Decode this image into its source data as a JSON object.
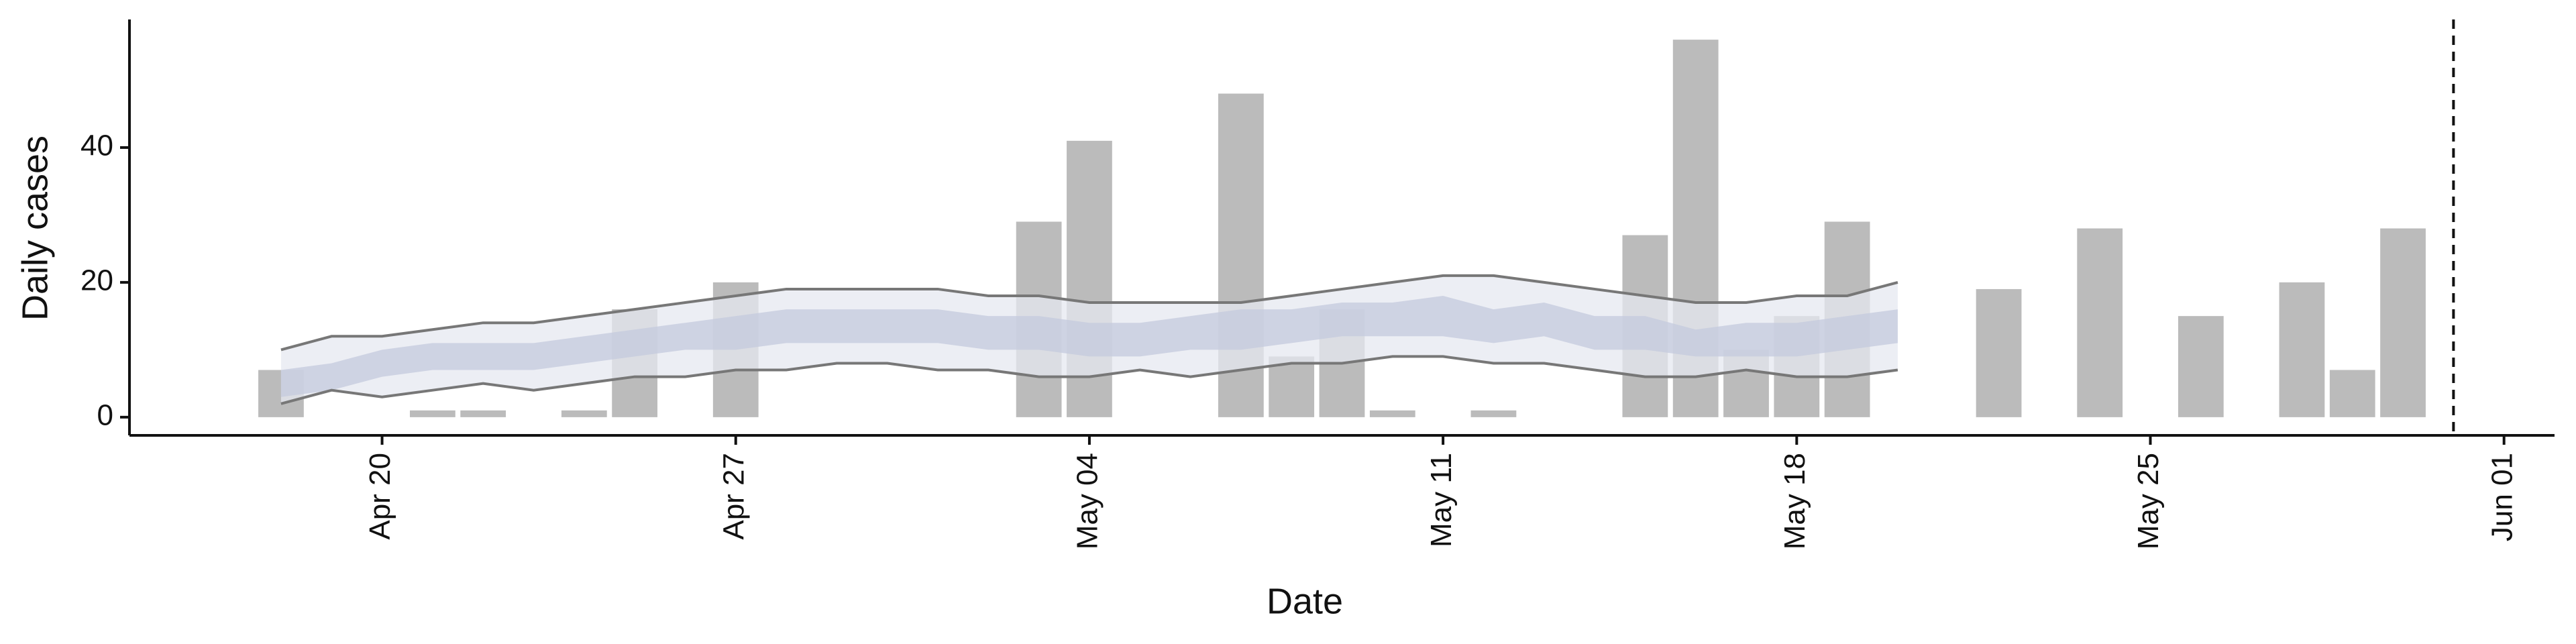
{
  "chart_data": {
    "type": "bar",
    "x_label": "Date",
    "y_label": "Daily cases",
    "x": [
      "04-18",
      "04-21",
      "04-22",
      "04-24",
      "04-25",
      "04-27",
      "05-03",
      "05-04",
      "05-07",
      "05-08",
      "05-09",
      "05-10",
      "05-12",
      "05-15",
      "05-16",
      "05-17",
      "05-18",
      "05-19",
      "05-22",
      "05-24",
      "05-26",
      "05-28",
      "05-29",
      "05-30"
    ],
    "values": [
      7,
      1,
      1,
      1,
      16,
      20,
      29,
      41,
      48,
      9,
      16,
      1,
      1,
      27,
      56,
      10,
      15,
      29,
      19,
      28,
      15,
      20,
      7,
      28
    ],
    "color": "#bbbbbb",
    "band_x": [
      "04-18",
      "04-19",
      "04-20",
      "04-21",
      "04-22",
      "04-23",
      "04-24",
      "04-25",
      "04-26",
      "04-27",
      "04-28",
      "04-29",
      "04-30",
      "05-01",
      "05-02",
      "05-03",
      "05-04",
      "05-05",
      "05-06",
      "05-07",
      "05-08",
      "05-09",
      "05-10",
      "05-11",
      "05-12",
      "05-13",
      "05-14",
      "05-15",
      "05-16",
      "05-17",
      "05-18",
      "05-19",
      "05-20"
    ],
    "band_90_upper": [
      10,
      12,
      12,
      13,
      14,
      14,
      15,
      16,
      17,
      18,
      19,
      19,
      19,
      19,
      18,
      18,
      17,
      17,
      17,
      17,
      18,
      19,
      20,
      21,
      21,
      20,
      19,
      18,
      17,
      17,
      18,
      18,
      20
    ],
    "band_90_lower": [
      2,
      4,
      3,
      4,
      5,
      4,
      5,
      6,
      6,
      7,
      7,
      8,
      8,
      7,
      7,
      6,
      6,
      7,
      6,
      7,
      8,
      8,
      9,
      9,
      8,
      8,
      7,
      6,
      6,
      7,
      6,
      6,
      7
    ],
    "band_50_upper": [
      7,
      8,
      10,
      11,
      11,
      11,
      12,
      13,
      14,
      15,
      16,
      16,
      16,
      16,
      15,
      15,
      14,
      14,
      15,
      16,
      16,
      17,
      17,
      18,
      16,
      17,
      15,
      15,
      13,
      14,
      14,
      15,
      16
    ],
    "band_50_lower": [
      3,
      4,
      6,
      7,
      7,
      7,
      8,
      9,
      10,
      10,
      11,
      11,
      11,
      11,
      10,
      10,
      9,
      9,
      10,
      10,
      11,
      12,
      12,
      12,
      11,
      12,
      10,
      10,
      9,
      9,
      9,
      10,
      11
    ],
    "band_90_color": "#e6e8f0",
    "band_50_color": "#c4cadd",
    "line_color": "#777777",
    "vline": "05-31",
    "xlim": [
      "04-15",
      "06-02"
    ],
    "xticks": [
      {
        "value": "04-20",
        "label": "Apr 20"
      },
      {
        "value": "04-27",
        "label": "Apr 27"
      },
      {
        "value": "05-04",
        "label": "May 04"
      },
      {
        "value": "05-11",
        "label": "May 11"
      },
      {
        "value": "05-18",
        "label": "May 18"
      },
      {
        "value": "05-25",
        "label": "May 25"
      },
      {
        "value": "06-01",
        "label": "Jun 01"
      }
    ],
    "ylim": [
      -2.7,
      59
    ],
    "yticks": [
      0,
      20,
      40
    ]
  }
}
